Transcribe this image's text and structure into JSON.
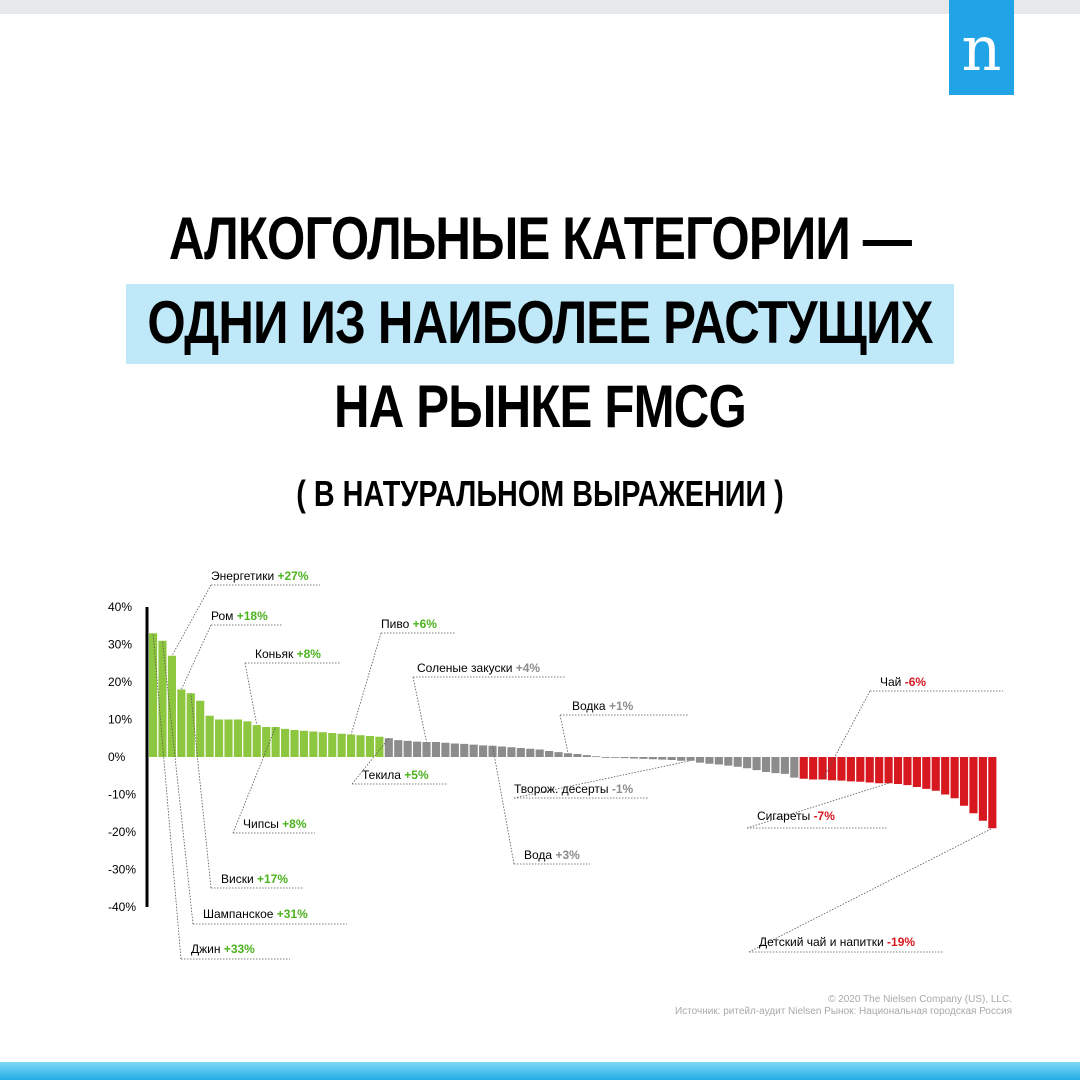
{
  "brand": {
    "logo_text": "n",
    "logo_color": "#21a4e6"
  },
  "title": {
    "line1": "АЛКОГОЛЬНЫЕ КАТЕГОРИИ —",
    "line2": "ОДНИ ИЗ НАИБОЛЕЕ РАСТУЩИХ",
    "line3": "НА РЫНКЕ FMCG",
    "subtitle": "( В НАТУРАЛЬНОМ ВЫРАЖЕНИИ )"
  },
  "footer": {
    "copyright": "© 2020 The Nielsen Company (US), LLC.",
    "source": "Источник: ритейл-аудит Nielsen Рынок: Национальная городская Россия"
  },
  "chart_data": {
    "type": "bar",
    "ylim": [
      -40,
      40
    ],
    "y_ticks": [
      "40%",
      "30%",
      "20%",
      "10%",
      "0%",
      "-10%",
      "-20%",
      "-30%",
      "-40%"
    ],
    "colors": {
      "alcohol_growth": "#8dc63f",
      "neutral": "#8c8c8c",
      "decline": "#d7191f",
      "label_green": "#4cb31e",
      "label_grey": "#8c8c8c",
      "label_red": "#d7191f"
    },
    "values": [
      33,
      31,
      27,
      18,
      17,
      15,
      11,
      10,
      10,
      10,
      9.5,
      8.5,
      8,
      8,
      7.5,
      7.2,
      7,
      6.8,
      6.6,
      6.4,
      6.2,
      6,
      5.8,
      5.6,
      5.4,
      5,
      4.5,
      4.3,
      4.1,
      4,
      4,
      3.8,
      3.6,
      3.5,
      3.3,
      3.1,
      3,
      2.8,
      2.6,
      2.4,
      2.2,
      2,
      1.6,
      1.3,
      1,
      0.8,
      0.5,
      0.2,
      0,
      -0.2,
      -0.3,
      -0.4,
      -0.5,
      -0.6,
      -0.7,
      -0.8,
      -1,
      -1,
      -1.5,
      -1.8,
      -2,
      -2.3,
      -2.6,
      -3,
      -3.5,
      -4,
      -4.3,
      -4.5,
      -5.5,
      -5.8,
      -6,
      -6,
      -6.2,
      -6.3,
      -6.5,
      -6.6,
      -6.8,
      -7,
      -7,
      -7.2,
      -7.5,
      -8,
      -8.5,
      -9,
      -10,
      -11,
      -13,
      -15,
      -17,
      -19
    ],
    "series_color_index": [
      0,
      25,
      69
    ],
    "annotations": [
      {
        "name": "Энергетики",
        "value": "+27%",
        "color": "green",
        "bar": 2
      },
      {
        "name": "Ром",
        "value": "+18%",
        "color": "green",
        "bar": 3
      },
      {
        "name": "Коньяк",
        "value": "+8%",
        "color": "green",
        "bar": 11
      },
      {
        "name": "Пиво",
        "value": "+6%",
        "color": "green",
        "bar": 21
      },
      {
        "name": "Соленые закуски",
        "value": "+4%",
        "color": "grey",
        "bar": 29
      },
      {
        "name": "Водка",
        "value": "+1%",
        "color": "grey",
        "bar": 44
      },
      {
        "name": "Чай",
        "value": "-6%",
        "color": "red",
        "bar": 71
      },
      {
        "name": "Текила",
        "value": "+5%",
        "color": "green",
        "bar": 25
      },
      {
        "name": "Творож. десерты",
        "value": "-1%",
        "color": "grey",
        "bar": 57
      },
      {
        "name": "Чипсы",
        "value": "+8%",
        "color": "green",
        "bar": 13
      },
      {
        "name": "Вода",
        "value": "+3%",
        "color": "grey",
        "bar": 36
      },
      {
        "name": "Сигареты",
        "value": "-7%",
        "color": "red",
        "bar": 78
      },
      {
        "name": "Виски",
        "value": "+17%",
        "color": "green",
        "bar": 4
      },
      {
        "name": "Шампанское",
        "value": "+31%",
        "color": "green",
        "bar": 1
      },
      {
        "name": "Джин",
        "value": "+33%",
        "color": "green",
        "bar": 0
      },
      {
        "name": "Детский чай и напитки",
        "value": "-19%",
        "color": "red",
        "bar": 89
      }
    ]
  }
}
